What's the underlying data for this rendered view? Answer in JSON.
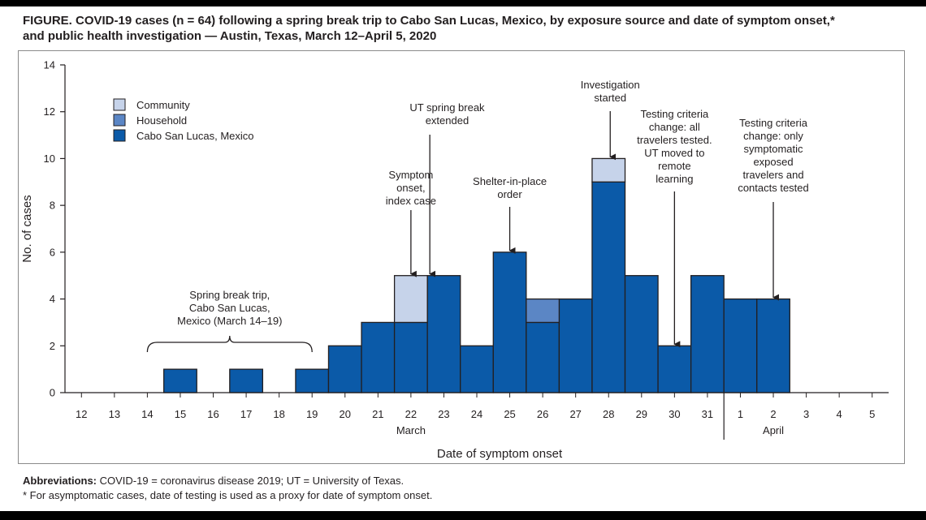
{
  "figure": {
    "title_line1": "FIGURE. COVID-19 cases (n = 64) following a spring break trip to Cabo San Lucas, Mexico, by exposure source and date of symptom onset,*",
    "title_line2": "and public health investigation — Austin, Texas, March 12–April 5, 2020",
    "abbrev_label": "Abbreviations:",
    "abbrev_text": " COVID-19 = coronavirus disease 2019; UT = University of Texas.",
    "footnote": "* For asymptomatic cases, date of testing is used as a proxy for date of symptom onset."
  },
  "chart_data": {
    "type": "bar",
    "stacked": true,
    "categories": [
      "12",
      "13",
      "14",
      "15",
      "16",
      "17",
      "18",
      "19",
      "20",
      "21",
      "22",
      "23",
      "24",
      "25",
      "26",
      "27",
      "28",
      "29",
      "30",
      "31",
      "1",
      "2",
      "3",
      "4",
      "5"
    ],
    "month_labels": [
      {
        "label": "March",
        "at_category": "22"
      },
      {
        "label": "April",
        "at_category": "2"
      }
    ],
    "series": [
      {
        "name": "Cabo San Lucas, Mexico",
        "color": "#0b5aa8",
        "values": [
          0,
          0,
          0,
          1,
          0,
          1,
          0,
          1,
          2,
          3,
          3,
          5,
          2,
          6,
          3,
          4,
          9,
          5,
          2,
          5,
          4,
          4,
          0,
          0,
          0
        ]
      },
      {
        "name": "Household",
        "color": "#5b86c5",
        "values": [
          0,
          0,
          0,
          0,
          0,
          0,
          0,
          0,
          0,
          0,
          0,
          0,
          0,
          0,
          1,
          0,
          0,
          0,
          0,
          0,
          0,
          0,
          0,
          0,
          0
        ]
      },
      {
        "name": "Community",
        "color": "#c6d3ea",
        "values": [
          0,
          0,
          0,
          0,
          0,
          0,
          0,
          0,
          0,
          0,
          2,
          0,
          0,
          0,
          0,
          0,
          1,
          0,
          0,
          0,
          0,
          0,
          0,
          0,
          0
        ]
      }
    ],
    "legend_order": [
      "Community",
      "Household",
      "Cabo San Lucas, Mexico"
    ],
    "legend_position": "top-left",
    "ylabel": "No. of cases",
    "xlabel": "Date of symptom onset",
    "ylim": [
      0,
      14
    ],
    "yticks": [
      0,
      2,
      4,
      6,
      8,
      10,
      12,
      14
    ],
    "grid": false,
    "bracket": {
      "lines": [
        "Spring break trip,",
        "Cabo San Lucas,",
        "Mexico (March 14–19)"
      ],
      "from_category": "14",
      "to_category": "19"
    },
    "annotations": [
      {
        "lines": [
          "Symptom",
          "onset,",
          "index case"
        ],
        "category": "22",
        "arrow_to_value": 5
      },
      {
        "lines": [
          "UT spring break",
          "extended"
        ],
        "category": "23",
        "arrow_to_value": 5
      },
      {
        "lines": [
          "Shelter-in-place",
          "order"
        ],
        "category": "25",
        "arrow_to_value": 6
      },
      {
        "lines": [
          "Investigation",
          "started"
        ],
        "category": "28",
        "arrow_to_value": 10
      },
      {
        "lines": [
          "Testing criteria",
          "change: all",
          "travelers tested.",
          "UT moved to",
          "remote",
          "learning"
        ],
        "category": "30",
        "arrow_to_value": 2
      },
      {
        "lines": [
          "Testing criteria",
          "change: only",
          "symptomatic",
          "exposed",
          "travelers and",
          "contacts tested"
        ],
        "category": "2",
        "arrow_to_value": 4
      }
    ]
  }
}
